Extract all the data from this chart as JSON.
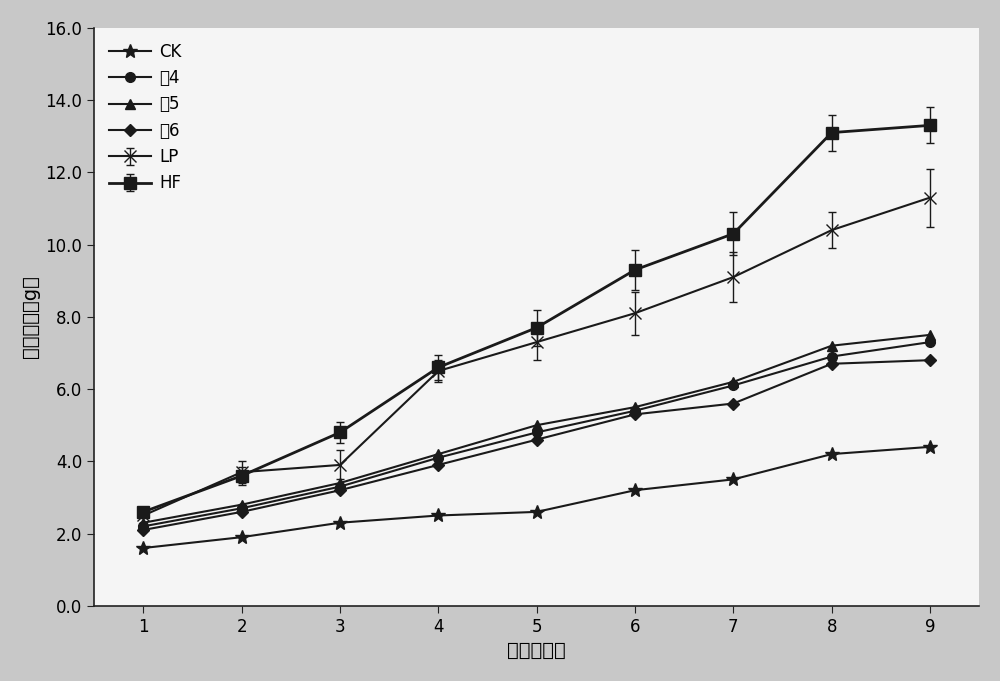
{
  "x": [
    1,
    2,
    3,
    4,
    5,
    6,
    7,
    8,
    9
  ],
  "series": {
    "CK": {
      "y": [
        1.6,
        1.9,
        2.3,
        2.5,
        2.6,
        3.2,
        3.5,
        4.2,
        4.4
      ],
      "yerr": [
        0.0,
        0.0,
        0.0,
        0.0,
        0.0,
        0.0,
        0.0,
        0.0,
        0.0
      ],
      "marker": "*",
      "markersize": 10,
      "label": "CK",
      "color": "#1a1a1a",
      "linewidth": 1.5
    },
    "菌4": {
      "y": [
        2.2,
        2.7,
        3.3,
        4.1,
        4.8,
        5.4,
        6.1,
        6.9,
        7.3
      ],
      "yerr": [
        0.0,
        0.0,
        0.0,
        0.0,
        0.0,
        0.0,
        0.0,
        0.0,
        0.0
      ],
      "marker": "o",
      "markersize": 7,
      "label": "菌4",
      "color": "#1a1a1a",
      "linewidth": 1.5
    },
    "菌5": {
      "y": [
        2.3,
        2.8,
        3.4,
        4.2,
        5.0,
        5.5,
        6.2,
        7.2,
        7.5
      ],
      "yerr": [
        0.0,
        0.0,
        0.0,
        0.0,
        0.0,
        0.0,
        0.0,
        0.0,
        0.0
      ],
      "marker": "^",
      "markersize": 7,
      "label": "菌5",
      "color": "#1a1a1a",
      "linewidth": 1.5
    },
    "菌6": {
      "y": [
        2.1,
        2.6,
        3.2,
        3.9,
        4.6,
        5.3,
        5.6,
        6.7,
        6.8
      ],
      "yerr": [
        0.0,
        0.0,
        0.0,
        0.0,
        0.0,
        0.0,
        0.0,
        0.0,
        0.0
      ],
      "marker": "D",
      "markersize": 6,
      "label": "菌6",
      "color": "#1a1a1a",
      "linewidth": 1.5
    },
    "LP": {
      "y": [
        2.5,
        3.7,
        3.9,
        6.5,
        7.3,
        8.1,
        9.1,
        10.4,
        11.3
      ],
      "yerr": [
        0.0,
        0.3,
        0.4,
        0.3,
        0.5,
        0.6,
        0.7,
        0.5,
        0.8
      ],
      "marker": "x",
      "markersize": 9,
      "label": "LP",
      "color": "#1a1a1a",
      "linewidth": 1.5
    },
    "HF": {
      "y": [
        2.6,
        3.6,
        4.8,
        6.6,
        7.7,
        9.3,
        10.3,
        13.1,
        13.3
      ],
      "yerr": [
        0.0,
        0.25,
        0.3,
        0.35,
        0.5,
        0.55,
        0.6,
        0.5,
        0.5
      ],
      "marker": "s",
      "markersize": 8,
      "label": "HF",
      "color": "#1a1a1a",
      "linewidth": 2.0
    }
  },
  "xlabel": "时间（周）",
  "ylabel": "体重增量（g）",
  "xlim": [
    0.5,
    9.5
  ],
  "ylim": [
    0.0,
    16.0
  ],
  "yticks": [
    0.0,
    2.0,
    4.0,
    6.0,
    8.0,
    10.0,
    12.0,
    14.0,
    16.0
  ],
  "xticks": [
    1,
    2,
    3,
    4,
    5,
    6,
    7,
    8,
    9
  ],
  "legend_order": [
    "CK",
    "菌4",
    "菌5",
    "菌6",
    "LP",
    "HF"
  ],
  "background_color": "#c8c8c8",
  "plot_bg_color": "#f5f5f5",
  "axis_fontsize": 14,
  "tick_fontsize": 12,
  "legend_fontsize": 12
}
